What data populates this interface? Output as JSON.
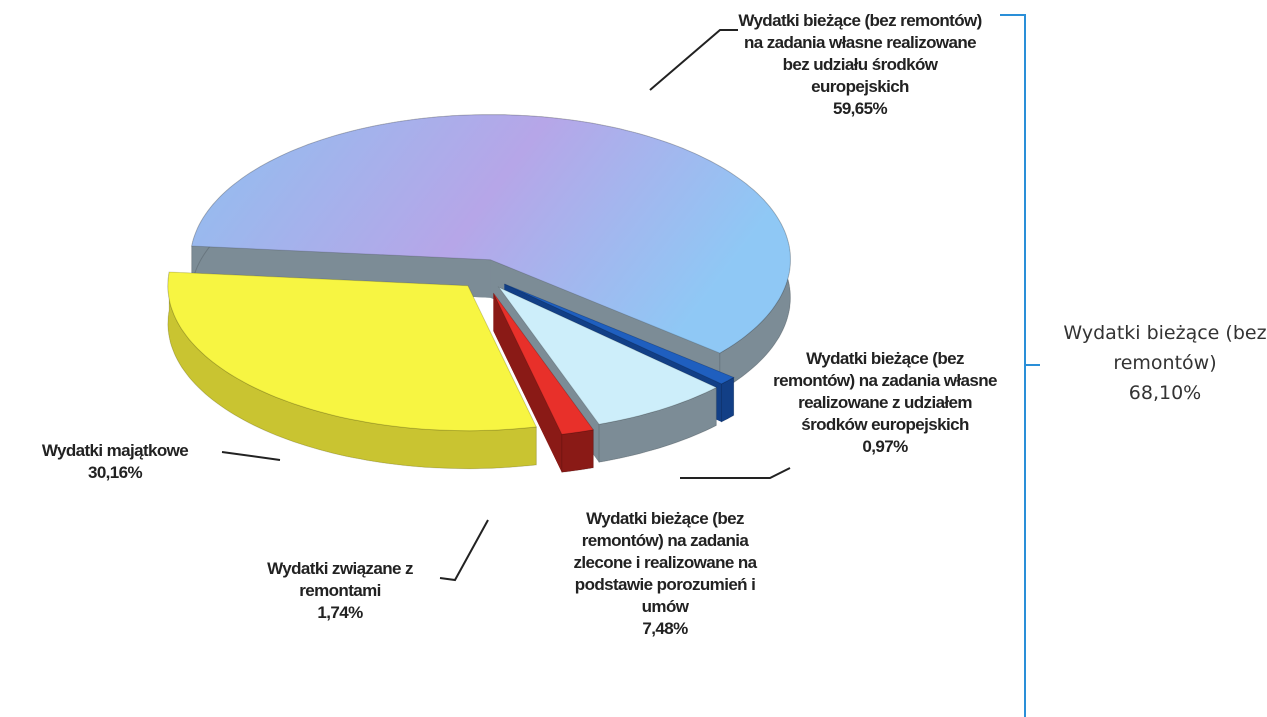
{
  "chart_data": {
    "type": "pie3d",
    "categories": [
      "Wydatki bieżące (bez remontów) na zadania własne realizowane bez udziału środków europejskich",
      "Wydatki bieżące (bez remontów) na zadania własne realizowane z udziałem środków europejskich",
      "Wydatki bieżące (bez remontów) na zadania zlecone i realizowane na podstawie porozumień i umów",
      "Wydatki związane z remontami",
      "Wydatki majątkowe"
    ],
    "values": [
      59.65,
      0.97,
      7.48,
      1.74,
      30.16
    ],
    "value_labels": [
      "59,65%",
      "0,97%",
      "7,48%",
      "1,74%",
      "30,16%"
    ],
    "colors": [
      "#9bb8f0",
      "#1f5fbf",
      "#cdeefa",
      "#e8302a",
      "#f7f542"
    ],
    "group": {
      "label": "Wydatki bieżące (bez remontów)",
      "value": 68.1,
      "value_label": "68,10%"
    }
  }
}
